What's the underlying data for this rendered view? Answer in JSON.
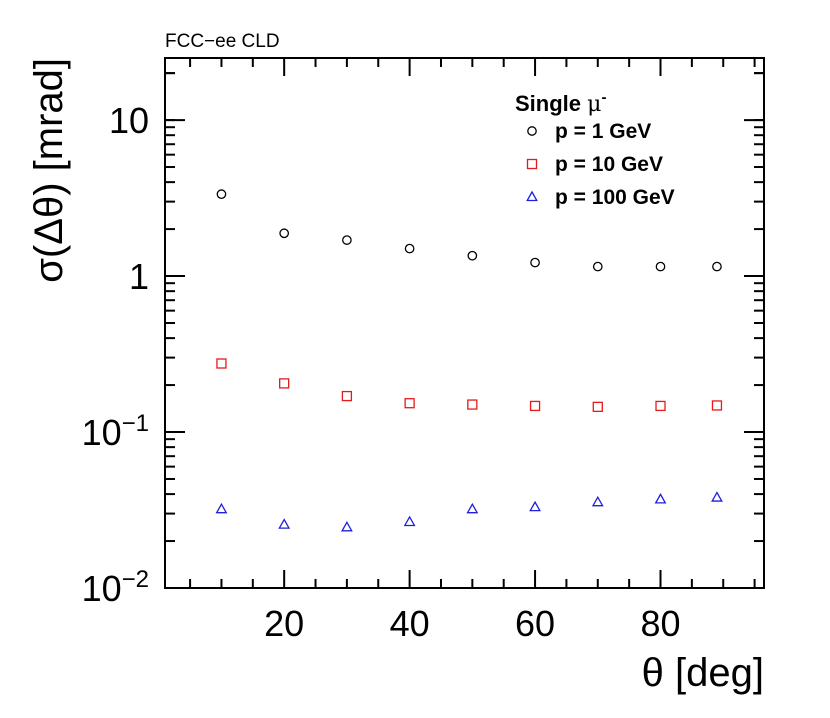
{
  "header": {
    "label": "FCC−ee CLD"
  },
  "chart_data": {
    "type": "scatter",
    "title": "",
    "xlabel": "θ [deg]",
    "ylabel": "σ(Δθ) [mrad]",
    "xlim": [
      1,
      96.5
    ],
    "ylim": [
      0.01,
      25
    ],
    "yscale": "log",
    "grid": false,
    "x_ticks": [
      20,
      40,
      60,
      80
    ],
    "y_ticks": [
      {
        "value": 10,
        "label": "10",
        "exponent": ""
      },
      {
        "value": 1,
        "label": "1",
        "exponent": ""
      },
      {
        "value": 0.1,
        "label": "10",
        "exponent": "−1"
      },
      {
        "value": 0.01,
        "label": "10",
        "exponent": "−2"
      }
    ],
    "legend": {
      "title_main": "Single ",
      "title_particle": "μ",
      "title_charge": "-",
      "position": "top-right"
    },
    "series": [
      {
        "name": "p = 1 GeV",
        "marker": "circle",
        "color": "#000000",
        "x": [
          10,
          20,
          30,
          40,
          50,
          60,
          70,
          80,
          89
        ],
        "y": [
          3.35,
          1.88,
          1.7,
          1.5,
          1.35,
          1.22,
          1.15,
          1.15,
          1.15
        ]
      },
      {
        "name": "p = 10 GeV",
        "marker": "square",
        "color": "#e41a1c",
        "x": [
          10,
          20,
          30,
          40,
          50,
          60,
          70,
          80,
          89
        ],
        "y": [
          0.275,
          0.205,
          0.17,
          0.153,
          0.15,
          0.147,
          0.145,
          0.147,
          0.148
        ]
      },
      {
        "name": "p = 100 GeV",
        "marker": "triangle",
        "color": "#1f1fdd",
        "x": [
          10,
          20,
          30,
          40,
          50,
          60,
          70,
          80,
          89
        ],
        "y": [
          0.032,
          0.0255,
          0.0245,
          0.0265,
          0.032,
          0.033,
          0.0355,
          0.037,
          0.038
        ]
      }
    ]
  }
}
